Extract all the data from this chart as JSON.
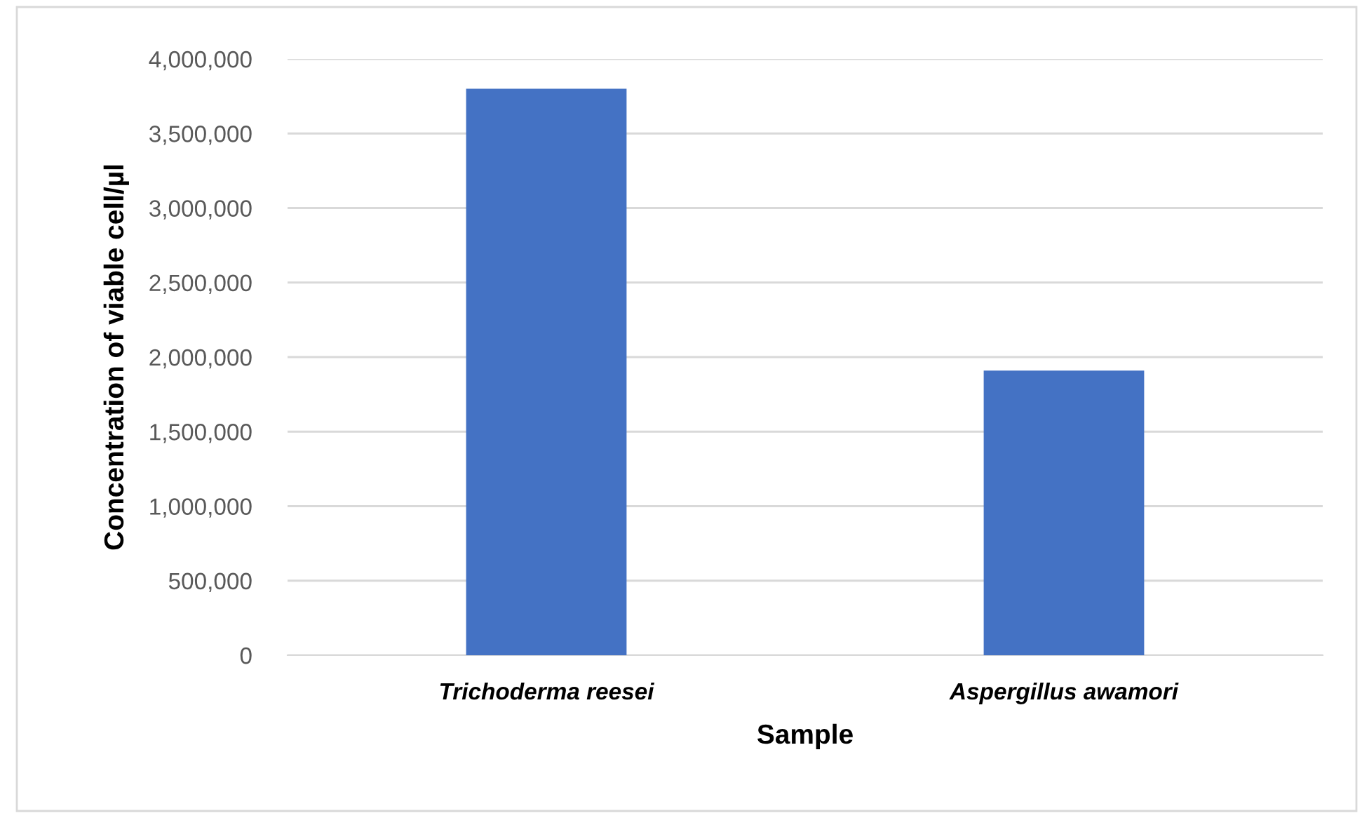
{
  "chart_data": {
    "type": "bar",
    "xlabel": "Sample",
    "ylabel": "Concentration of viable cell/µl",
    "categories": [
      "Trichoderma reesei",
      "Aspergillus awamori"
    ],
    "values": [
      3800000,
      1910000
    ],
    "color": "#4472c4",
    "ylim": [
      0,
      4000000
    ],
    "yticks": [
      {
        "value": 0,
        "label": "0"
      },
      {
        "value": 500000,
        "label": "500,000"
      },
      {
        "value": 1000000,
        "label": "1,000,000"
      },
      {
        "value": 1500000,
        "label": "1,500,000"
      },
      {
        "value": 2000000,
        "label": "2,000,000"
      },
      {
        "value": 2500000,
        "label": "2,500,000"
      },
      {
        "value": 3000000,
        "label": "3,000,000"
      },
      {
        "value": 3500000,
        "label": "3,500,000"
      },
      {
        "value": 4000000,
        "label": "4,000,000"
      }
    ],
    "grid": "y",
    "legend": false
  }
}
